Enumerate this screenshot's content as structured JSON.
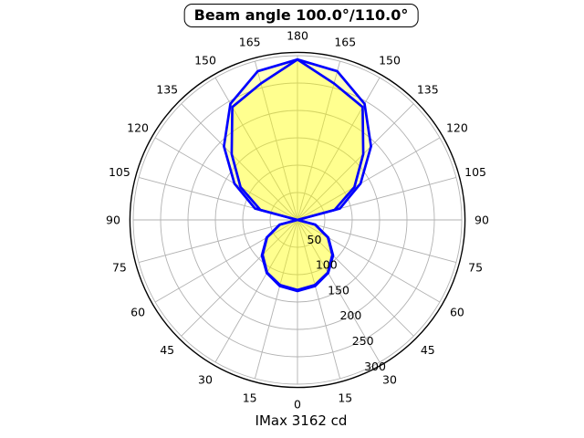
{
  "chart_data": {
    "type": "polar",
    "subtype": "photometric-light-distribution",
    "title": "Beam angle 100.0°/110.0°",
    "caption": "IMax 3162 cd",
    "imax_cd": 3162,
    "beam_angles_deg": [
      100.0,
      110.0
    ],
    "angle_ticks_deg": [
      0,
      15,
      30,
      45,
      60,
      75,
      90,
      105,
      120,
      135,
      150,
      165,
      180
    ],
    "angle_ticks_mirrored_both_sides": true,
    "radial_ticks": [
      50,
      100,
      150,
      200,
      250,
      300
    ],
    "radial_axis_max": 306,
    "grid_color": "#b2b2b2",
    "outer_ring_color": "#000000",
    "curve_color": "#0000ff",
    "fill_color": "#ffff00",
    "fill_opacity": 0.25,
    "series": [
      {
        "name": "beam-110-plane",
        "angles_deg": [
          0,
          15,
          30,
          45,
          60,
          75,
          90,
          105,
          120,
          135,
          150,
          165,
          180
        ],
        "values_cd": [
          130,
          125,
          112,
          92,
          65,
          34,
          0,
          80,
          133,
          190,
          245,
          281,
          293
        ]
      },
      {
        "name": "beam-100-plane",
        "angles_deg": [
          0,
          15,
          30,
          45,
          60,
          75,
          90,
          105,
          120,
          135,
          150,
          165,
          180
        ],
        "values_cd": [
          128,
          123,
          111,
          90,
          64,
          33,
          0,
          70,
          120,
          170,
          238,
          258,
          293
        ]
      }
    ]
  }
}
